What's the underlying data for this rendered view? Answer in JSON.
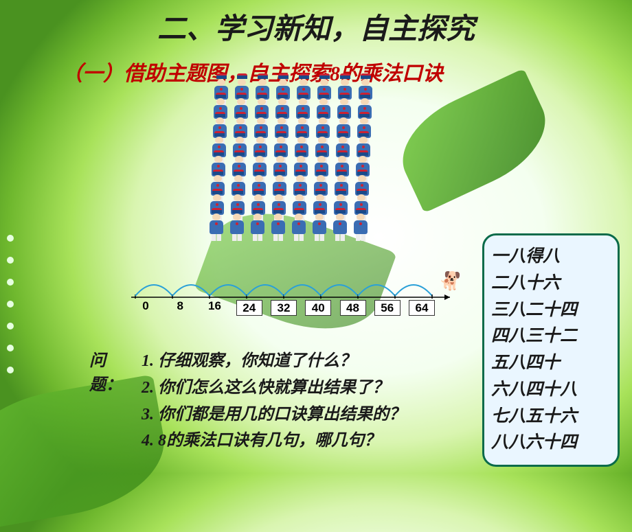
{
  "title": "二、学习新知，自主探究",
  "subtitle": "（一）借助主题图，自主探索8的乘法口诀",
  "band": {
    "rows": 8,
    "per_row": 8
  },
  "number_line": {
    "start": 0,
    "step": 8,
    "values": [
      {
        "n": "0",
        "boxed": false
      },
      {
        "n": "8",
        "boxed": false
      },
      {
        "n": "16",
        "boxed": false
      },
      {
        "n": "24",
        "boxed": true
      },
      {
        "n": "32",
        "boxed": true
      },
      {
        "n": "40",
        "boxed": true
      },
      {
        "n": "48",
        "boxed": true
      },
      {
        "n": "56",
        "boxed": true
      },
      {
        "n": "64",
        "boxed": true
      }
    ],
    "arc_color": "#2aa0d8",
    "line_color": "#000000"
  },
  "questions_label": "问题：",
  "questions": [
    "1. 仔细观察，你知道了什么？",
    "2. 你们怎么这么快就算出结果了？",
    "3. 你们都是用几的口诀算出结果的？",
    "4. 8的乘法口诀有几句，哪几句？"
  ],
  "mnemonics": [
    "一八得八",
    "二八十六",
    "三八二十四",
    "四八三十二",
    "五八四十",
    "六八四十八",
    "七八五十六",
    "八八六十四"
  ],
  "colors": {
    "title": "#1a1a1a",
    "subtitle": "#c00000",
    "mnemo_bg": "#eaf6ff",
    "mnemo_border": "#0a6b4a"
  }
}
